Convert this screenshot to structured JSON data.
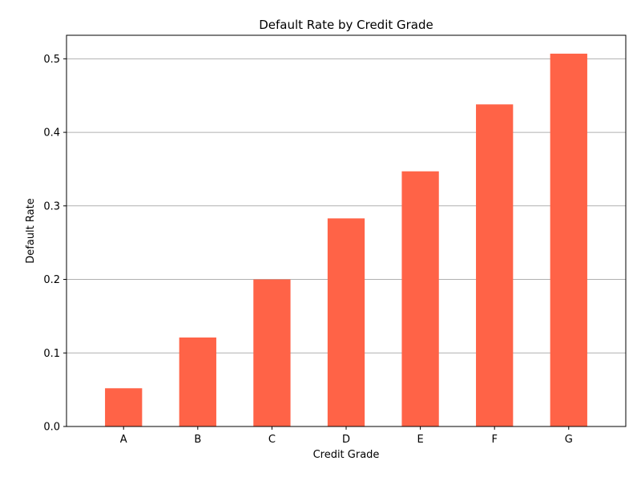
{
  "chart_data": {
    "type": "bar",
    "title": "Default Rate by Credit Grade",
    "xlabel": "Credit Grade",
    "ylabel": "Default Rate",
    "categories": [
      "A",
      "B",
      "C",
      "D",
      "E",
      "F",
      "G"
    ],
    "values": [
      0.052,
      0.121,
      0.2,
      0.283,
      0.347,
      0.438,
      0.507
    ],
    "ylim": [
      0,
      0.532
    ],
    "yticks": [
      0.0,
      0.1,
      0.2,
      0.3,
      0.4,
      0.5
    ],
    "ytick_labels": [
      "0.0",
      "0.1",
      "0.2",
      "0.3",
      "0.4",
      "0.5"
    ],
    "grid": "y-major",
    "bar_color": "#ff6347"
  }
}
